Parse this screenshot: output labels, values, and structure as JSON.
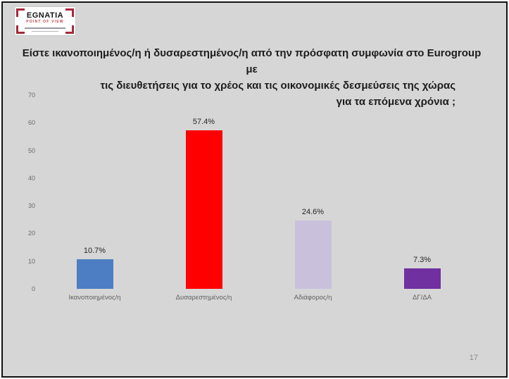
{
  "slide": {
    "background_color": "#d6d6d6",
    "page_number": "17"
  },
  "logo": {
    "name": "EGNATIA",
    "subtitle": "POINT OF VIEW",
    "brand_color": "#a8293a"
  },
  "title": {
    "line1": "Είστε ικανοποιημένος/η ή δυσαρεστημένος/η  από την πρόσφατη  συμφωνία στο Eurogroup  με",
    "line2": "τις διευθετήσεις για το χρέος και τις οικονομικές δεσμεύσεις της χώρας",
    "line3": "για τα επόμενα χρόνια ;"
  },
  "chart_data": {
    "type": "bar",
    "categories": [
      "Ικανοποιημένος/η",
      "Δυσαρεστημένος/η",
      "Αδιάφορος/η",
      "ΔΓ/ΔΑ"
    ],
    "values": [
      10.7,
      57.4,
      24.6,
      7.3
    ],
    "value_labels": [
      "10.7%",
      "57.4%",
      "24.6%",
      "7.3%"
    ],
    "bar_colors": [
      "#4d7ec4",
      "#fe0000",
      "#c9c1dc",
      "#7030a0"
    ],
    "title": "",
    "xlabel": "",
    "ylabel": "",
    "ylim": [
      0,
      70
    ],
    "yticks": [
      0,
      10,
      20,
      30,
      40,
      50,
      60,
      70
    ],
    "grid": false,
    "legend": false
  }
}
